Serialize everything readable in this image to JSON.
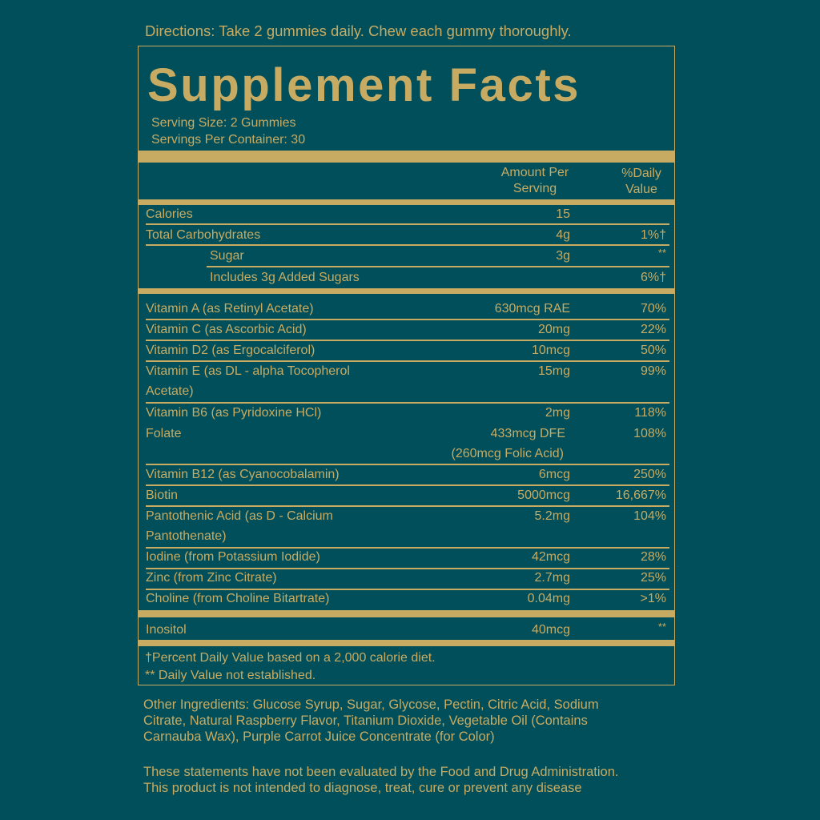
{
  "directions": "Directions: Take 2 gummies daily. Chew each gummy thoroughly.",
  "title": "Supplement Facts",
  "serving_size": "Serving Size: 2 Gummies",
  "servings_per_container": "Servings Per Container: 30",
  "header": {
    "amount_line1": "Amount Per",
    "amount_line2": "Serving",
    "dv_line1": "%Daily",
    "dv_line2": "Value"
  },
  "rows": [
    {
      "name": "Calories",
      "amount": "15",
      "dv": ""
    },
    {
      "name": "Total Carbohydrates",
      "amount": "4g",
      "dv": "1%†"
    },
    {
      "name": "Sugar",
      "amount": "3g",
      "dv": "**"
    },
    {
      "name": "Includes 3g Added Sugars",
      "amount": "",
      "dv": "6%†"
    },
    {
      "name": "Vitamin A (as Retinyl Acetate)",
      "amount": "630mcg RAE",
      "dv": "70%"
    },
    {
      "name": "Vitamin C (as Ascorbic Acid)",
      "amount": "20mg",
      "dv": "22%"
    },
    {
      "name": "Vitamin D2 (as Ergocalciferol)",
      "amount": "10mcg",
      "dv": "50%"
    },
    {
      "name": "Vitamin E (as DL - alpha Tocopherol",
      "name2": "Acetate)",
      "amount": "15mg",
      "dv": "99%"
    },
    {
      "name": "Vitamin B6 (as Pyridoxine HCl)",
      "amount": "2mg",
      "dv": "118%"
    },
    {
      "name": "Folate",
      "amount": "433mcg DFE",
      "amount2": "(260mcg Folic Acid)",
      "dv": "108%"
    },
    {
      "name": "Vitamin B12 (as Cyanocobalamin)",
      "amount": "6mcg",
      "dv": "250%"
    },
    {
      "name": "Biotin",
      "amount": "5000mcg",
      "dv": "16,667%"
    },
    {
      "name": "Pantothenic Acid (as D - Calcium",
      "name2": "Pantothenate)",
      "amount": "5.2mg",
      "dv": "104%"
    },
    {
      "name": "Iodine (from Potassium Iodide)",
      "amount": "42mcg",
      "dv": "28%"
    },
    {
      "name": "Zinc (from Zinc Citrate)",
      "amount": "2.7mg",
      "dv": "25%"
    },
    {
      "name": "Choline (from Choline Bitartrate)",
      "amount": "0.04mg",
      "dv": ">1%"
    },
    {
      "name": "Inositol",
      "amount": "40mcg",
      "dv": "**"
    }
  ],
  "footnotes": [
    "†Percent Daily Value based on a 2,000 calorie diet.",
    "** Daily Value not established."
  ],
  "other_ingredients": [
    "Other Ingredients: Glucose Syrup, Sugar, Glycose, Pectin, Citric Acid, Sodium",
    "Citrate, Natural Raspberry Flavor, Titanium Dioxide, Vegetable Oil (Contains",
    "Carnauba Wax), Purple Carrot Juice Concentrate (for Color)"
  ],
  "disclaimer": [
    "These statements have not been evaluated by the Food and Drug Administration.",
    "This product is not intended to diagnose, treat, cure or prevent any disease"
  ],
  "colors": {
    "background": "#004f5b",
    "text": "#c8ab62"
  }
}
